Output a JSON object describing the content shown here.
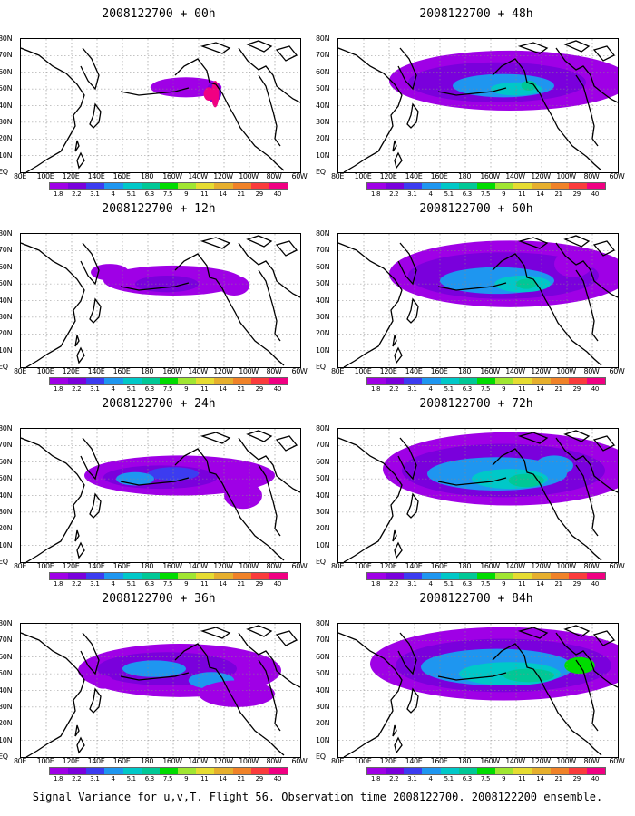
{
  "caption": "Signal Variance for u,v,T. Flight 56. Observation time 2008122700. 2008122200 ensemble.",
  "lat_labels": [
    "80N",
    "70N",
    "60N",
    "50N",
    "40N",
    "30N",
    "20N",
    "10N",
    "EQ"
  ],
  "lon_labels": [
    "80E",
    "100E",
    "120E",
    "140E",
    "160E",
    "180",
    "160W",
    "140W",
    "120W",
    "100W",
    "80W",
    "60W"
  ],
  "colorbar": {
    "labels": [
      "1.8",
      "2.2",
      "3.1",
      "4",
      "5.1",
      "6.3",
      "7.5",
      "9",
      "11",
      "14",
      "21",
      "29",
      "40"
    ],
    "colors": [
      "#9f00e6",
      "#7a00dc",
      "#3c3cf0",
      "#1e96f0",
      "#00c8c8",
      "#00c896",
      "#00dc00",
      "#a0e632",
      "#e6dc32",
      "#e6af2d",
      "#f08228",
      "#fa3c3c",
      "#f00082"
    ]
  },
  "panels": [
    {
      "title": "2008122700 + 00h"
    },
    {
      "title": "2008122700 + 12h"
    },
    {
      "title": "2008122700 + 24h"
    },
    {
      "title": "2008122700 + 36h"
    },
    {
      "title": "2008122700 + 48h"
    },
    {
      "title": "2008122700 + 60h"
    },
    {
      "title": "2008122700 + 72h"
    },
    {
      "title": "2008122700 + 84h"
    }
  ]
}
